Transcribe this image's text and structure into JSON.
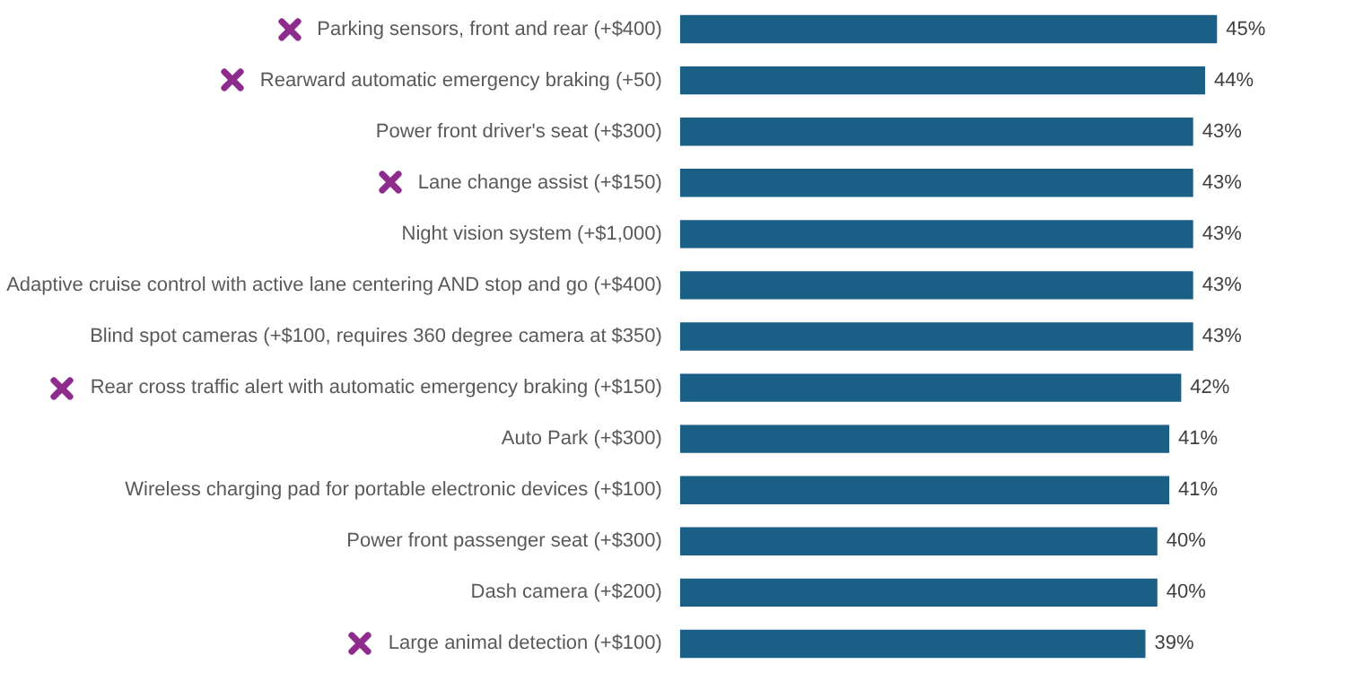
{
  "chart_data": {
    "type": "bar",
    "orientation": "horizontal",
    "tick_labels": "y",
    "value_labels": [
      "45%",
      "44%",
      "43%",
      "43%",
      "43%",
      "43%",
      "43%",
      "42%",
      "41%",
      "41%",
      "40%",
      "40%",
      "39%"
    ],
    "categories": [
      "Parking sensors, front and rear (+$400)",
      "Rearward automatic emergency braking (+50)",
      "Power front driver's seat (+$300)",
      "Lane change assist (+$150)",
      "Night vision system (+$1,000)",
      "Adaptive cruise control with active lane centering AND stop and go (+$400)",
      "Blind spot cameras (+$100, requires 360 degree camera at $350)",
      "Rear cross traffic alert with automatic emergency braking (+$150)",
      "Auto Park (+$300)",
      "Wireless charging pad for portable electronic devices (+$100)",
      "Power front passenger seat (+$300)",
      "Dash camera (+$200)",
      "Large animal detection (+$100)"
    ],
    "values": [
      45,
      44,
      43,
      43,
      43,
      43,
      43,
      42,
      41,
      41,
      40,
      40,
      39
    ],
    "color": "#195f86"
  }
}
